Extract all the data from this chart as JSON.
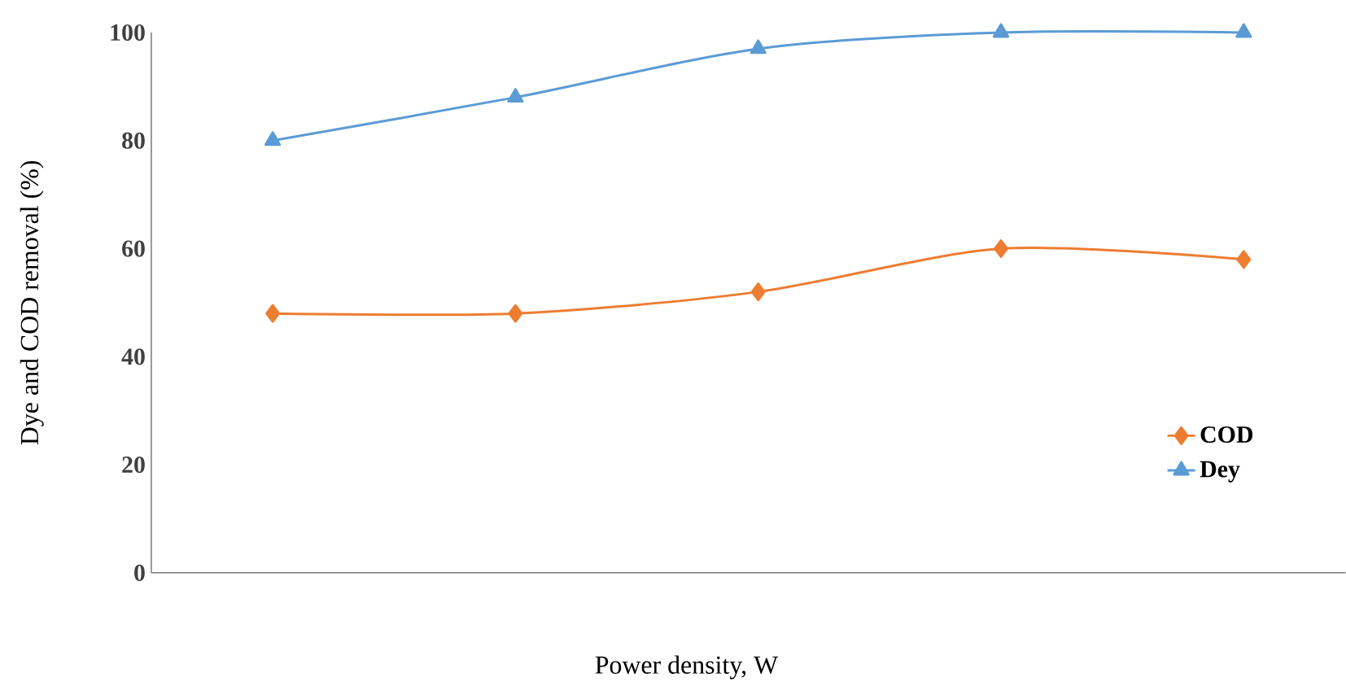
{
  "chart_data": {
    "type": "line",
    "xlabel": "Power density, W",
    "ylabel": "Dye and COD removal (%)",
    "categories": [
      null,
      null,
      null,
      null,
      null
    ],
    "series": [
      {
        "name": "COD",
        "color": "#ed7d31",
        "marker": "diamond",
        "values": [
          48,
          48,
          52,
          60,
          58
        ]
      },
      {
        "name": "Dey",
        "color": "#5b9bd5",
        "marker": "triangle",
        "values": [
          80,
          88,
          97,
          100,
          100
        ]
      }
    ],
    "ylim": [
      0,
      100
    ],
    "yticks": [
      0,
      20,
      40,
      60,
      80,
      100
    ],
    "grid": false,
    "legend": "bottom right",
    "line_style": "solid"
  }
}
